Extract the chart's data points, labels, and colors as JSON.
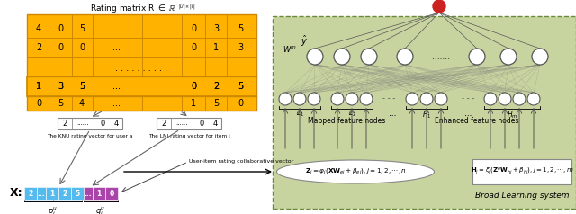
{
  "fig_width": 6.4,
  "fig_height": 2.38,
  "dpi": 100,
  "bg_color": "#ffffff",
  "orange_color": "#FFB300",
  "orange_edge": "#CC8800",
  "green_bg": "#C8D4A0",
  "green_border": "#6A8A3A",
  "blue_color": "#55BBEE",
  "purple_color": "#AA44AA",
  "red_node": "#CC2222",
  "node_color": "#FFFFFF",
  "node_edge": "#555555",
  "matrix_rows": [
    [
      "4",
      "0",
      "5",
      "...",
      "0",
      "3",
      "5"
    ],
    [
      "2",
      "0",
      "0",
      "...",
      "0",
      "1",
      "3"
    ],
    [
      "1",
      "3",
      "5",
      "...",
      "0",
      "2",
      "5"
    ],
    [
      "0",
      "5",
      "4",
      "...",
      "1",
      "5",
      "0"
    ]
  ],
  "knu_label": "The KNU rating vector for user a",
  "lni_label": "The LNI rating vector for item i",
  "collab_label": "User-item rating collaborative vector",
  "mapped_label": "Mapped feature nodes",
  "enhanced_label": "Enhanced feature nodes",
  "bls_label": "Broad Learning system"
}
